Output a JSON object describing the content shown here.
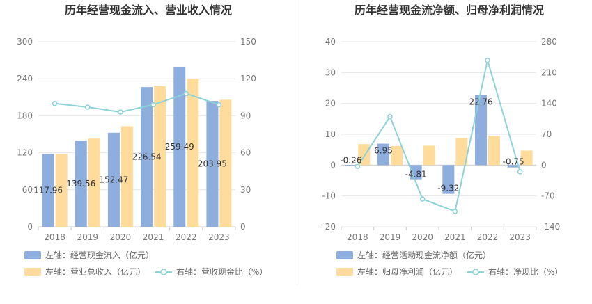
{
  "colors": {
    "bar_blue": "#8eaedd",
    "bar_orange": "#ffdb9c",
    "line": "#8bd3d9",
    "grid": "#e6e6e6",
    "axis": "#cccccc"
  },
  "chart_data": [
    {
      "type": "bar",
      "title": "历年经营现金流入、营业收入情况",
      "categories": [
        "2018",
        "2019",
        "2020",
        "2021",
        "2022",
        "2023"
      ],
      "left_axis": {
        "ticks": [
          "0",
          "60",
          "120",
          "180",
          "240",
          "300"
        ],
        "ylim": [
          0,
          300
        ]
      },
      "right_axis": {
        "ticks": [
          "0",
          "30",
          "60",
          "90",
          "120",
          "150"
        ],
        "ylim": [
          0,
          150
        ]
      },
      "series": [
        {
          "name": "左轴：经营现金流入（亿元）",
          "axis": "left",
          "kind": "bar",
          "values": [
            117.96,
            139.56,
            152.47,
            226.54,
            259.49,
            203.95
          ],
          "labels": [
            "117.96",
            "139.56",
            "152.47",
            "226.54",
            "259.49",
            "203.95"
          ]
        },
        {
          "name": "左轴：营业总收入（亿元）",
          "axis": "left",
          "kind": "bar",
          "values": [
            118,
            143,
            163,
            228,
            240,
            206
          ]
        },
        {
          "name": "右轴：营收现金比（%）",
          "axis": "right",
          "kind": "line",
          "values": [
            100,
            97,
            93,
            99,
            108,
            99
          ]
        }
      ],
      "grid": true,
      "legend": "bottom-left"
    },
    {
      "type": "bar",
      "title": "历年经营现金流净额、归母净利润情况",
      "categories": [
        "2018",
        "2019",
        "2020",
        "2021",
        "2022",
        "2023"
      ],
      "left_axis": {
        "ticks": [
          "-20",
          "-10",
          "0",
          "10",
          "20",
          "30",
          "40"
        ],
        "ylim": [
          -20,
          40
        ]
      },
      "right_axis": {
        "ticks": [
          "-140",
          "-70",
          "0",
          "70",
          "140",
          "210",
          "280"
        ],
        "ylim": [
          -140,
          280
        ]
      },
      "series": [
        {
          "name": "左轴：经营活动现金流净额（亿元）",
          "axis": "left",
          "kind": "bar",
          "values": [
            -0.26,
            6.95,
            -4.81,
            -9.32,
            22.76,
            -0.75
          ],
          "labels": [
            "-0.26",
            "6.95",
            "-4.81",
            "-9.32",
            "22.76",
            "-0.75"
          ]
        },
        {
          "name": "左轴：归母净利润（亿元）",
          "axis": "left",
          "kind": "bar",
          "values": [
            6.8,
            6.2,
            6.3,
            8.8,
            9.5,
            4.7
          ]
        },
        {
          "name": "右轴：净现比（%）",
          "axis": "right",
          "kind": "line",
          "values": [
            -3,
            110,
            -77,
            -105,
            238,
            -15
          ]
        }
      ],
      "grid": true,
      "legend": "bottom-left"
    }
  ]
}
